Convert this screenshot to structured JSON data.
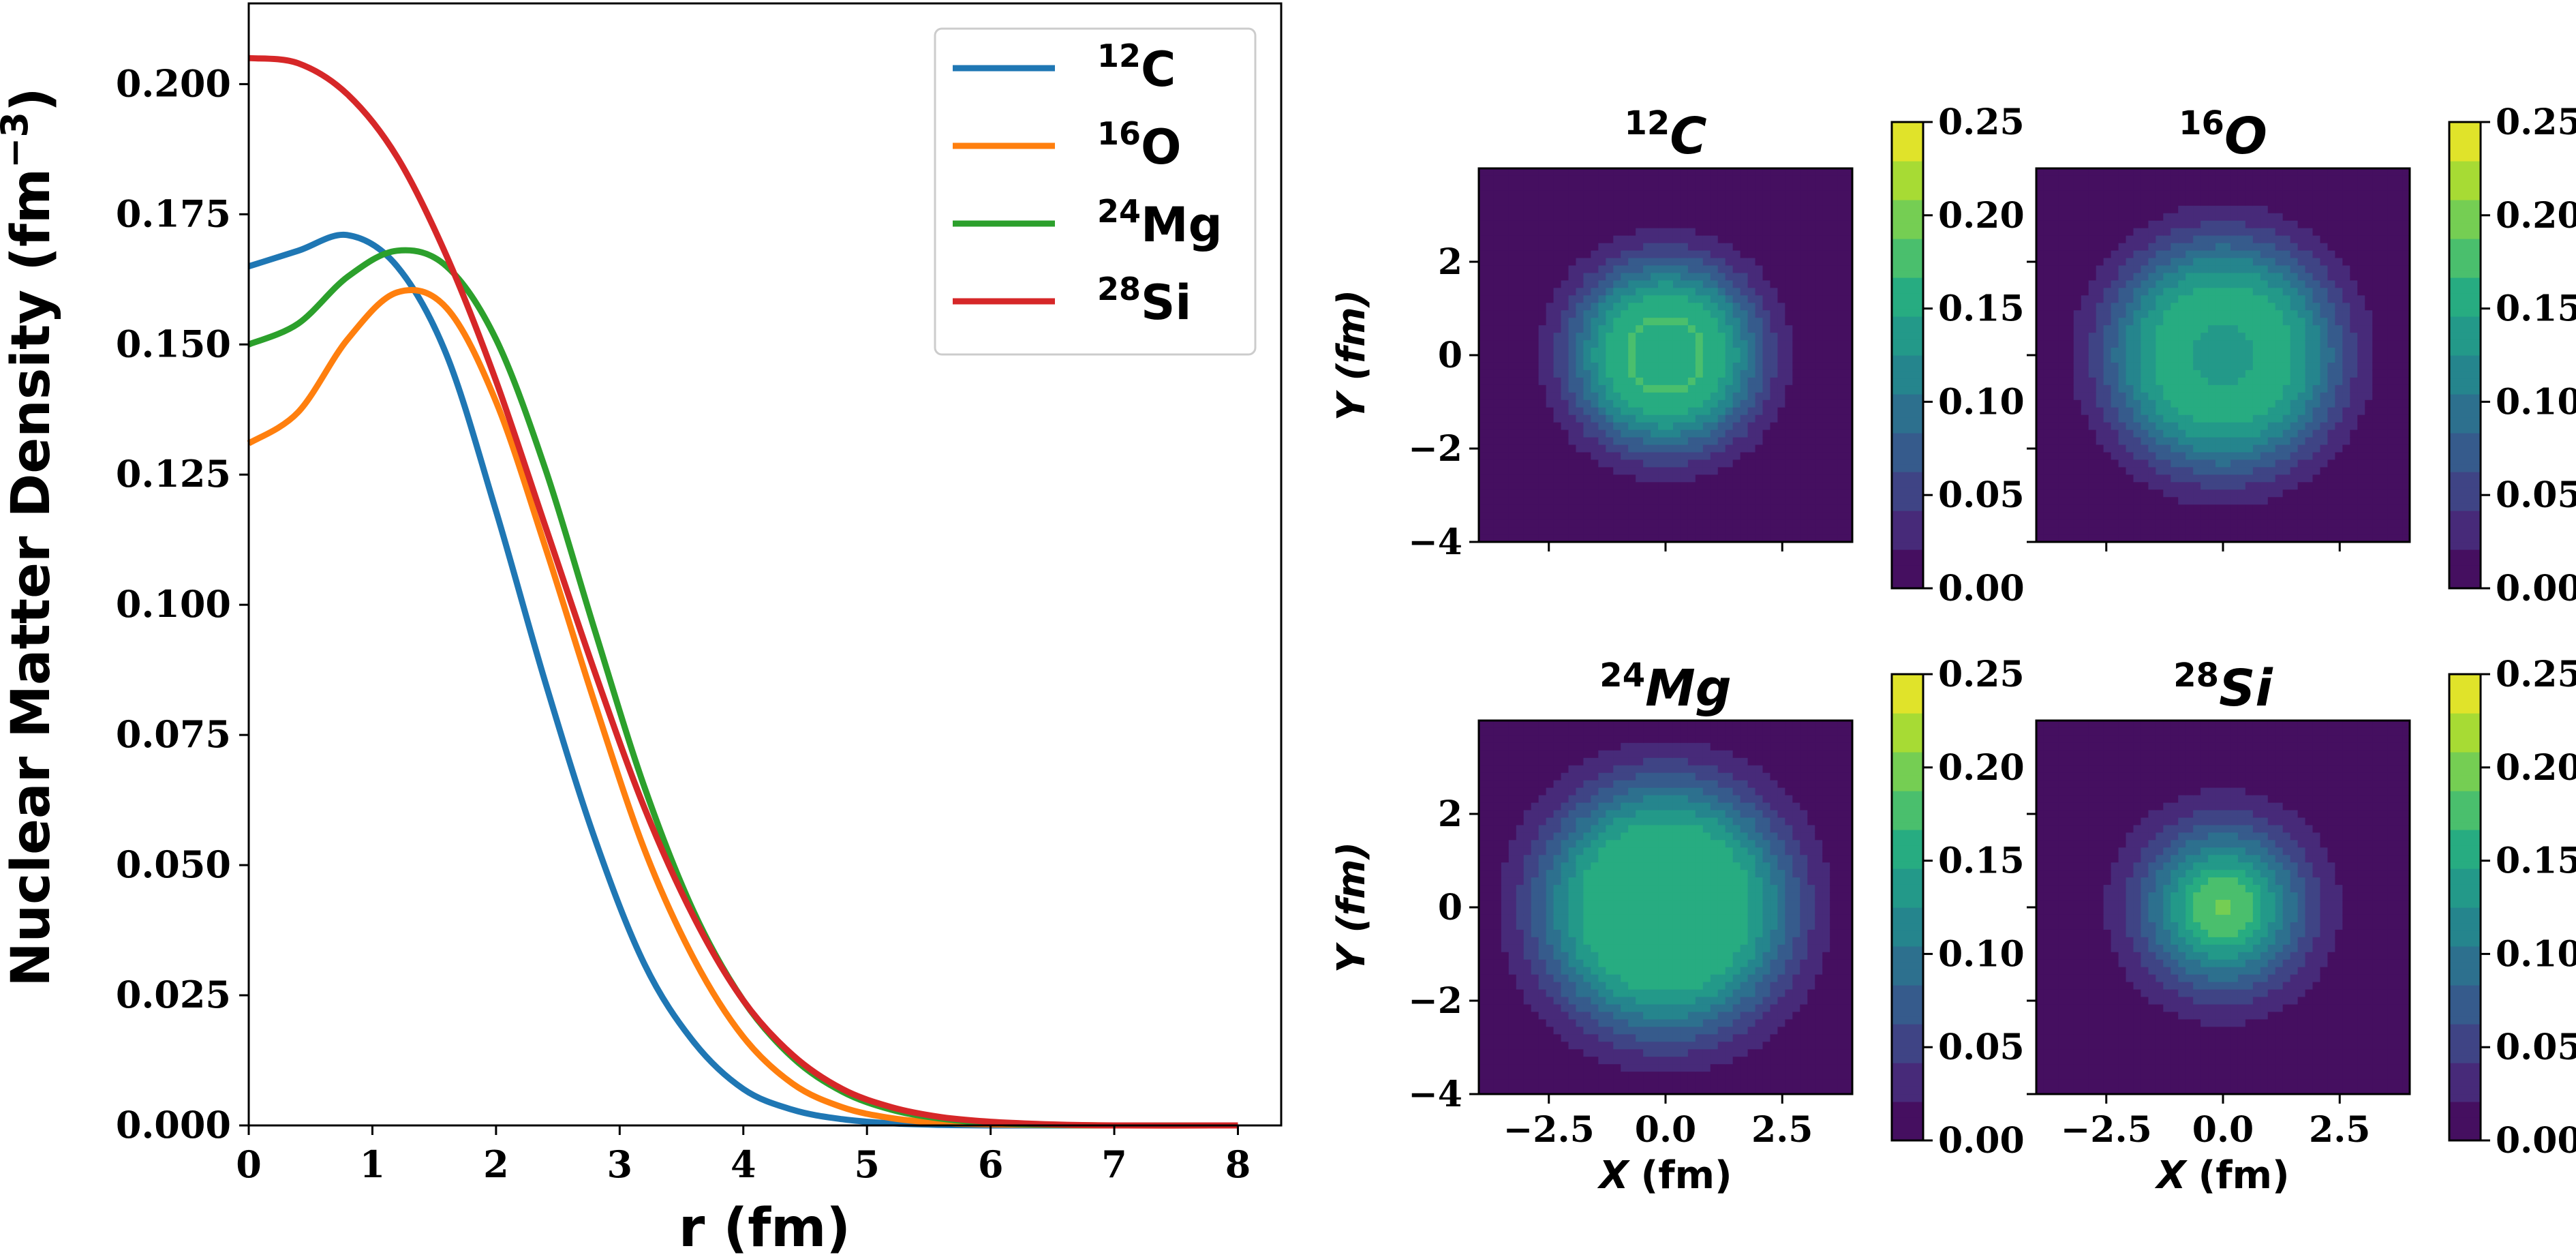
{
  "chart_data": [
    {
      "type": "line",
      "ylabel": "Nuclear Matter Density (fm",
      "ylabel_unit_exp": "−3",
      "ylabel_close": ")",
      "xlabel": "r (fm)",
      "xlim": [
        0,
        8.35
      ],
      "ylim": [
        0,
        0.2155
      ],
      "xticks": [
        "0",
        "1",
        "2",
        "3",
        "4",
        "5",
        "6",
        "7",
        "8"
      ],
      "yticks": [
        "0.000",
        "0.025",
        "0.050",
        "0.075",
        "0.100",
        "0.125",
        "0.150",
        "0.175",
        "0.200"
      ],
      "legend_position": "upper right",
      "grid": false,
      "series": [
        {
          "name": "C",
          "name_sup": "12",
          "color": "#1f77b4",
          "x": [
            0,
            0.4,
            0.8,
            1.2,
            1.6,
            2.0,
            2.4,
            2.8,
            3.2,
            3.6,
            4.0,
            4.4,
            4.8,
            5.2,
            5.6,
            6.0,
            7.0,
            8.0
          ],
          "y": [
            0.165,
            0.168,
            0.171,
            0.165,
            0.148,
            0.118,
            0.085,
            0.055,
            0.031,
            0.016,
            0.007,
            0.003,
            0.0012,
            0.0004,
            0.0001,
            0.0,
            0.0,
            0.0
          ]
        },
        {
          "name": "O",
          "name_sup": "16",
          "color": "#ff7f0e",
          "x": [
            0,
            0.4,
            0.8,
            1.2,
            1.6,
            2.0,
            2.4,
            2.8,
            3.2,
            3.6,
            4.0,
            4.4,
            4.8,
            5.2,
            5.6,
            6.0,
            7.0,
            8.0
          ],
          "y": [
            0.131,
            0.137,
            0.151,
            0.16,
            0.157,
            0.139,
            0.111,
            0.081,
            0.053,
            0.032,
            0.017,
            0.008,
            0.0035,
            0.0014,
            0.0005,
            0.0002,
            0.0,
            0.0
          ]
        },
        {
          "name": "Mg",
          "name_sup": "24",
          "color": "#2ca02c",
          "x": [
            0,
            0.4,
            0.8,
            1.2,
            1.6,
            2.0,
            2.4,
            2.8,
            3.2,
            3.6,
            4.0,
            4.4,
            4.8,
            5.2,
            5.6,
            6.0,
            6.5,
            7.0,
            8.0
          ],
          "y": [
            0.15,
            0.154,
            0.163,
            0.168,
            0.165,
            0.151,
            0.126,
            0.095,
            0.065,
            0.041,
            0.024,
            0.013,
            0.0065,
            0.003,
            0.0013,
            0.0005,
            0.0001,
            0.0,
            0.0
          ]
        },
        {
          "name": "Si",
          "name_sup": "28",
          "color": "#d62728",
          "x": [
            0,
            0.4,
            0.8,
            1.2,
            1.6,
            2.0,
            2.4,
            2.8,
            3.2,
            3.6,
            4.0,
            4.4,
            4.8,
            5.2,
            5.6,
            6.0,
            6.5,
            7.0,
            8.0
          ],
          "y": [
            0.205,
            0.204,
            0.198,
            0.186,
            0.167,
            0.143,
            0.115,
            0.087,
            0.061,
            0.04,
            0.024,
            0.0135,
            0.007,
            0.0035,
            0.0016,
            0.0007,
            0.0002,
            0.0,
            0.0
          ]
        }
      ]
    },
    {
      "type": "heatmap",
      "panels": [
        {
          "title_sup": "12",
          "title": "C",
          "peak": 0.167,
          "center": 0.148,
          "r_peak": 0.8,
          "sigma": 1.85
        },
        {
          "title_sup": "16",
          "title": "O",
          "peak": 0.152,
          "center": 0.128,
          "r_peak": 1.2,
          "sigma": 2.0
        },
        {
          "title_sup": "24",
          "title": "Mg",
          "peak": 0.163,
          "center": 0.148,
          "r_peak": 1.3,
          "sigma": 2.2
        },
        {
          "title_sup": "28",
          "title": "Si",
          "peak": 0.19,
          "center": 0.19,
          "r_peak": 0.0,
          "sigma": 2.35
        }
      ],
      "xlabel": "X",
      "xlabel_unit": "(fm)",
      "ylabel": "Y",
      "ylabel_unit": "(fm)",
      "xticks": [
        "−2.5",
        "0.0",
        "2.5"
      ],
      "yticks": [
        "2",
        "0",
        "−2",
        "−4"
      ],
      "xlim": [
        -4,
        4
      ],
      "ylim": [
        -4,
        4
      ],
      "colorbar_ticks": [
        "0.25",
        "0.20",
        "0.15",
        "0.10",
        "0.05",
        "0.00"
      ],
      "colorbar_range": [
        0,
        0.25
      ],
      "colormap": "viridis"
    }
  ]
}
